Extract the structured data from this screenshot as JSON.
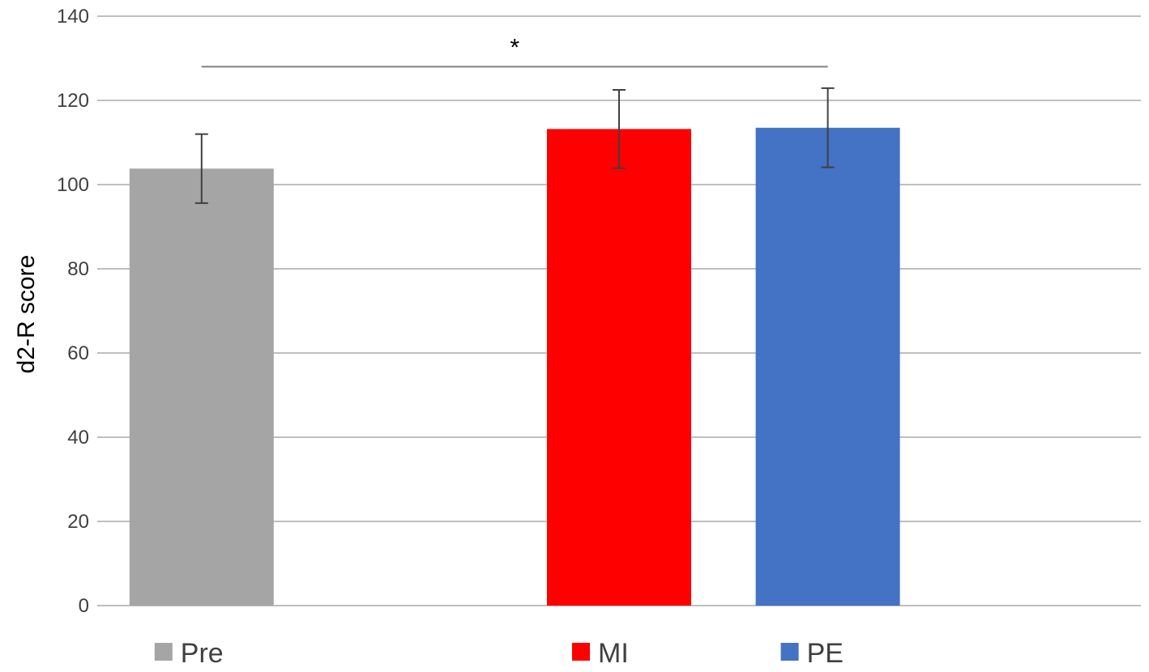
{
  "chart_data": {
    "type": "bar",
    "categories": [
      "Pre",
      "MI",
      "PE"
    ],
    "values": [
      103.8,
      113.2,
      113.5
    ],
    "error": [
      8.2,
      9.3,
      9.4
    ],
    "colors": [
      "#a5a5a5",
      "#ff0000",
      "#4472c4"
    ],
    "category_slots": [
      1,
      3,
      4
    ],
    "slot_count": 5,
    "ylabel": "d2-R score",
    "ylim": [
      0,
      140
    ],
    "yticks": [
      0,
      20,
      40,
      60,
      80,
      100,
      120,
      140
    ],
    "grid": true,
    "legend": {
      "placement": "bottom",
      "entries": [
        "Pre",
        "MI",
        "PE"
      ]
    },
    "significance": {
      "label": "*",
      "from": "Pre",
      "to": "PE",
      "y": 128
    }
  }
}
